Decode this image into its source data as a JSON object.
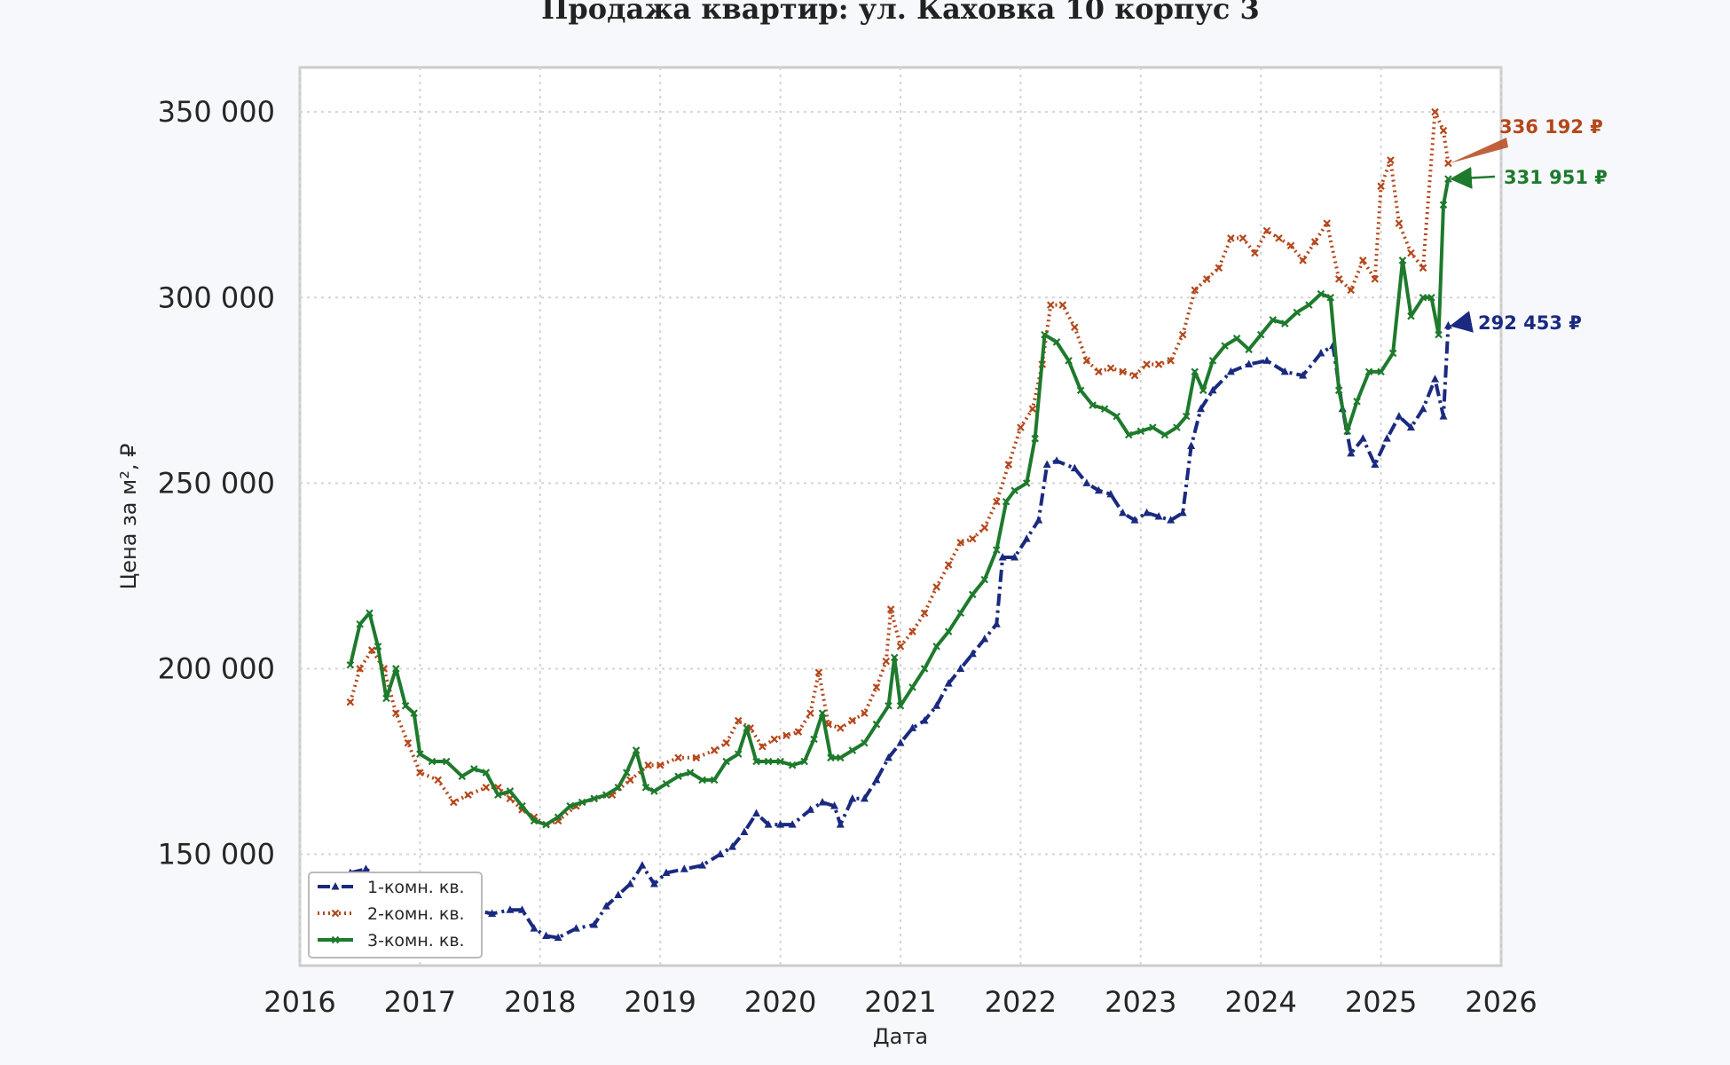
{
  "chart_data": {
    "type": "line",
    "title": "Продажа квартир: ул. Каховка 10 корпус 3",
    "xlabel": "Дата",
    "ylabel": "Цена за м², ₽",
    "xlim": [
      2016,
      2026
    ],
    "ylim": [
      120000,
      362000
    ],
    "x_ticks": [
      2016,
      2017,
      2018,
      2019,
      2020,
      2021,
      2022,
      2023,
      2024,
      2025,
      2026
    ],
    "x_tick_labels": [
      "2016",
      "2017",
      "2018",
      "2019",
      "2020",
      "2021",
      "2022",
      "2023",
      "2024",
      "2025",
      "2026"
    ],
    "y_ticks": [
      150000,
      200000,
      250000,
      300000,
      350000
    ],
    "y_tick_labels": [
      "150 000",
      "200 000",
      "250 000",
      "300 000",
      "350 000"
    ],
    "grid": true,
    "legend_position": "bottom-left",
    "series": [
      {
        "name": "1-комн. кв.",
        "color": "#1a2a80",
        "linestyle": "dashdot",
        "marker": "triangle",
        "points": [
          [
            2016.42,
            145000
          ],
          [
            2016.55,
            146000
          ],
          [
            2016.7,
            143000
          ],
          [
            2016.85,
            141000
          ],
          [
            2017.0,
            140000
          ],
          [
            2017.15,
            139000
          ],
          [
            2017.3,
            137000
          ],
          [
            2017.45,
            135000
          ],
          [
            2017.6,
            134000
          ],
          [
            2017.75,
            135000
          ],
          [
            2017.85,
            135000
          ],
          [
            2017.95,
            130000
          ],
          [
            2018.05,
            128000
          ],
          [
            2018.15,
            127500
          ],
          [
            2018.3,
            130000
          ],
          [
            2018.45,
            131000
          ],
          [
            2018.55,
            136000
          ],
          [
            2018.65,
            139000
          ],
          [
            2018.75,
            142000
          ],
          [
            2018.85,
            147000
          ],
          [
            2018.95,
            142000
          ],
          [
            2019.05,
            145000
          ],
          [
            2019.2,
            146000
          ],
          [
            2019.35,
            147000
          ],
          [
            2019.5,
            150000
          ],
          [
            2019.6,
            152000
          ],
          [
            2019.7,
            156000
          ],
          [
            2019.8,
            161000
          ],
          [
            2019.9,
            158000
          ],
          [
            2020.0,
            158000
          ],
          [
            2020.1,
            158000
          ],
          [
            2020.25,
            162000
          ],
          [
            2020.35,
            164000
          ],
          [
            2020.45,
            163000
          ],
          [
            2020.5,
            158000
          ],
          [
            2020.6,
            165000
          ],
          [
            2020.7,
            165000
          ],
          [
            2020.8,
            170000
          ],
          [
            2020.9,
            176000
          ],
          [
            2021.0,
            180000
          ],
          [
            2021.1,
            184000
          ],
          [
            2021.2,
            186000
          ],
          [
            2021.3,
            190000
          ],
          [
            2021.4,
            196000
          ],
          [
            2021.5,
            200000
          ],
          [
            2021.6,
            204000
          ],
          [
            2021.7,
            208000
          ],
          [
            2021.8,
            212000
          ],
          [
            2021.85,
            230000
          ],
          [
            2021.95,
            230000
          ],
          [
            2022.05,
            235000
          ],
          [
            2022.15,
            240000
          ],
          [
            2022.22,
            255000
          ],
          [
            2022.3,
            256000
          ],
          [
            2022.45,
            254000
          ],
          [
            2022.55,
            250000
          ],
          [
            2022.65,
            248000
          ],
          [
            2022.75,
            247000
          ],
          [
            2022.85,
            242000
          ],
          [
            2022.95,
            240000
          ],
          [
            2023.05,
            242000
          ],
          [
            2023.15,
            241000
          ],
          [
            2023.25,
            240000
          ],
          [
            2023.35,
            242000
          ],
          [
            2023.42,
            260000
          ],
          [
            2023.5,
            270000
          ],
          [
            2023.6,
            275000
          ],
          [
            2023.75,
            280000
          ],
          [
            2023.9,
            282000
          ],
          [
            2024.05,
            283000
          ],
          [
            2024.2,
            280000
          ],
          [
            2024.35,
            279000
          ],
          [
            2024.5,
            285000
          ],
          [
            2024.6,
            287000
          ],
          [
            2024.68,
            270000
          ],
          [
            2024.75,
            258000
          ],
          [
            2024.85,
            262000
          ],
          [
            2024.95,
            255000
          ],
          [
            2025.05,
            262000
          ],
          [
            2025.15,
            268000
          ],
          [
            2025.25,
            265000
          ],
          [
            2025.35,
            270000
          ],
          [
            2025.45,
            278000
          ],
          [
            2025.52,
            268000
          ],
          [
            2025.56,
            292453
          ]
        ]
      },
      {
        "name": "2-комн. кв.",
        "color": "#b5471b",
        "linestyle": "dotted",
        "marker": "x",
        "points": [
          [
            2016.42,
            191000
          ],
          [
            2016.5,
            200000
          ],
          [
            2016.6,
            205000
          ],
          [
            2016.7,
            200000
          ],
          [
            2016.8,
            188000
          ],
          [
            2016.9,
            180000
          ],
          [
            2017.0,
            172000
          ],
          [
            2017.15,
            170000
          ],
          [
            2017.28,
            164000
          ],
          [
            2017.4,
            166000
          ],
          [
            2017.55,
            168000
          ],
          [
            2017.65,
            168000
          ],
          [
            2017.75,
            165000
          ],
          [
            2017.85,
            162000
          ],
          [
            2017.95,
            160000
          ],
          [
            2018.05,
            158000
          ],
          [
            2018.15,
            159000
          ],
          [
            2018.3,
            163000
          ],
          [
            2018.45,
            165000
          ],
          [
            2018.6,
            166000
          ],
          [
            2018.75,
            170000
          ],
          [
            2018.9,
            174000
          ],
          [
            2019.0,
            174000
          ],
          [
            2019.15,
            176000
          ],
          [
            2019.3,
            176000
          ],
          [
            2019.45,
            178000
          ],
          [
            2019.55,
            180000
          ],
          [
            2019.65,
            186000
          ],
          [
            2019.75,
            184000
          ],
          [
            2019.85,
            179000
          ],
          [
            2019.95,
            181000
          ],
          [
            2020.05,
            182000
          ],
          [
            2020.15,
            183000
          ],
          [
            2020.25,
            188000
          ],
          [
            2020.32,
            199000
          ],
          [
            2020.4,
            185000
          ],
          [
            2020.5,
            184000
          ],
          [
            2020.6,
            186000
          ],
          [
            2020.7,
            188000
          ],
          [
            2020.8,
            195000
          ],
          [
            2020.88,
            202000
          ],
          [
            2020.92,
            216000
          ],
          [
            2021.0,
            206000
          ],
          [
            2021.1,
            210000
          ],
          [
            2021.2,
            215000
          ],
          [
            2021.3,
            222000
          ],
          [
            2021.4,
            228000
          ],
          [
            2021.5,
            234000
          ],
          [
            2021.6,
            235000
          ],
          [
            2021.7,
            238000
          ],
          [
            2021.8,
            245000
          ],
          [
            2021.9,
            255000
          ],
          [
            2022.0,
            265000
          ],
          [
            2022.1,
            270000
          ],
          [
            2022.18,
            282000
          ],
          [
            2022.25,
            298000
          ],
          [
            2022.35,
            298000
          ],
          [
            2022.45,
            292000
          ],
          [
            2022.55,
            283000
          ],
          [
            2022.65,
            280000
          ],
          [
            2022.75,
            281000
          ],
          [
            2022.85,
            280000
          ],
          [
            2022.95,
            279000
          ],
          [
            2023.05,
            282000
          ],
          [
            2023.15,
            282000
          ],
          [
            2023.25,
            283000
          ],
          [
            2023.35,
            290000
          ],
          [
            2023.45,
            302000
          ],
          [
            2023.55,
            305000
          ],
          [
            2023.65,
            308000
          ],
          [
            2023.75,
            316000
          ],
          [
            2023.85,
            316000
          ],
          [
            2023.95,
            312000
          ],
          [
            2024.05,
            318000
          ],
          [
            2024.15,
            316000
          ],
          [
            2024.25,
            314000
          ],
          [
            2024.35,
            310000
          ],
          [
            2024.45,
            315000
          ],
          [
            2024.55,
            320000
          ],
          [
            2024.65,
            305000
          ],
          [
            2024.75,
            302000
          ],
          [
            2024.85,
            310000
          ],
          [
            2024.95,
            305000
          ],
          [
            2025.0,
            330000
          ],
          [
            2025.08,
            337000
          ],
          [
            2025.15,
            320000
          ],
          [
            2025.25,
            312000
          ],
          [
            2025.35,
            308000
          ],
          [
            2025.45,
            350000
          ],
          [
            2025.52,
            345000
          ],
          [
            2025.56,
            336192
          ]
        ]
      },
      {
        "name": "3-комн. кв.",
        "color": "#1e7a2c",
        "linestyle": "solid",
        "marker": "x",
        "points": [
          [
            2016.42,
            201000
          ],
          [
            2016.5,
            212000
          ],
          [
            2016.58,
            215000
          ],
          [
            2016.65,
            206000
          ],
          [
            2016.72,
            192000
          ],
          [
            2016.8,
            200000
          ],
          [
            2016.88,
            190000
          ],
          [
            2016.95,
            188000
          ],
          [
            2017.0,
            177000
          ],
          [
            2017.1,
            175000
          ],
          [
            2017.22,
            175000
          ],
          [
            2017.35,
            171000
          ],
          [
            2017.45,
            173000
          ],
          [
            2017.55,
            172000
          ],
          [
            2017.65,
            166000
          ],
          [
            2017.75,
            167000
          ],
          [
            2017.85,
            163000
          ],
          [
            2017.95,
            159000
          ],
          [
            2018.05,
            158000
          ],
          [
            2018.15,
            160000
          ],
          [
            2018.25,
            163000
          ],
          [
            2018.35,
            164000
          ],
          [
            2018.45,
            165000
          ],
          [
            2018.55,
            166000
          ],
          [
            2018.65,
            168000
          ],
          [
            2018.72,
            172000
          ],
          [
            2018.8,
            178000
          ],
          [
            2018.88,
            168000
          ],
          [
            2018.95,
            167000
          ],
          [
            2019.05,
            169000
          ],
          [
            2019.15,
            171000
          ],
          [
            2019.25,
            172000
          ],
          [
            2019.35,
            170000
          ],
          [
            2019.45,
            170000
          ],
          [
            2019.55,
            175000
          ],
          [
            2019.65,
            177000
          ],
          [
            2019.72,
            184000
          ],
          [
            2019.8,
            175000
          ],
          [
            2019.9,
            175000
          ],
          [
            2020.0,
            175000
          ],
          [
            2020.1,
            174000
          ],
          [
            2020.2,
            175000
          ],
          [
            2020.28,
            181000
          ],
          [
            2020.35,
            188000
          ],
          [
            2020.42,
            176000
          ],
          [
            2020.5,
            176000
          ],
          [
            2020.6,
            178000
          ],
          [
            2020.7,
            180000
          ],
          [
            2020.8,
            185000
          ],
          [
            2020.9,
            190000
          ],
          [
            2020.95,
            203000
          ],
          [
            2021.0,
            190000
          ],
          [
            2021.1,
            195000
          ],
          [
            2021.2,
            200000
          ],
          [
            2021.3,
            206000
          ],
          [
            2021.4,
            210000
          ],
          [
            2021.5,
            215000
          ],
          [
            2021.6,
            220000
          ],
          [
            2021.7,
            224000
          ],
          [
            2021.8,
            232000
          ],
          [
            2021.88,
            245000
          ],
          [
            2021.95,
            248000
          ],
          [
            2022.05,
            250000
          ],
          [
            2022.12,
            262000
          ],
          [
            2022.2,
            290000
          ],
          [
            2022.3,
            288000
          ],
          [
            2022.4,
            283000
          ],
          [
            2022.5,
            275000
          ],
          [
            2022.6,
            271000
          ],
          [
            2022.7,
            270000
          ],
          [
            2022.8,
            268000
          ],
          [
            2022.9,
            263000
          ],
          [
            2023.0,
            264000
          ],
          [
            2023.1,
            265000
          ],
          [
            2023.2,
            263000
          ],
          [
            2023.3,
            265000
          ],
          [
            2023.38,
            268000
          ],
          [
            2023.45,
            280000
          ],
          [
            2023.52,
            275000
          ],
          [
            2023.6,
            283000
          ],
          [
            2023.7,
            287000
          ],
          [
            2023.8,
            289000
          ],
          [
            2023.9,
            286000
          ],
          [
            2024.0,
            290000
          ],
          [
            2024.1,
            294000
          ],
          [
            2024.2,
            293000
          ],
          [
            2024.3,
            296000
          ],
          [
            2024.4,
            298000
          ],
          [
            2024.5,
            301000
          ],
          [
            2024.58,
            300000
          ],
          [
            2024.65,
            275000
          ],
          [
            2024.72,
            264000
          ],
          [
            2024.8,
            272000
          ],
          [
            2024.9,
            280000
          ],
          [
            2025.0,
            280000
          ],
          [
            2025.1,
            285000
          ],
          [
            2025.18,
            310000
          ],
          [
            2025.25,
            295000
          ],
          [
            2025.35,
            300000
          ],
          [
            2025.42,
            300000
          ],
          [
            2025.48,
            290000
          ],
          [
            2025.52,
            325000
          ],
          [
            2025.56,
            331951
          ]
        ]
      }
    ],
    "annotations": [
      {
        "text": "336 192 ₽",
        "series": "2-комн. кв.",
        "x": 2025.56,
        "y": 336192,
        "color": "#b5471b"
      },
      {
        "text": "331 951 ₽",
        "series": "3-комн. кв.",
        "x": 2025.56,
        "y": 331951,
        "color": "#1e7a2c"
      },
      {
        "text": "292 453 ₽",
        "series": "1-комн. кв.",
        "x": 2025.56,
        "y": 292453,
        "color": "#1a2a80"
      }
    ]
  }
}
